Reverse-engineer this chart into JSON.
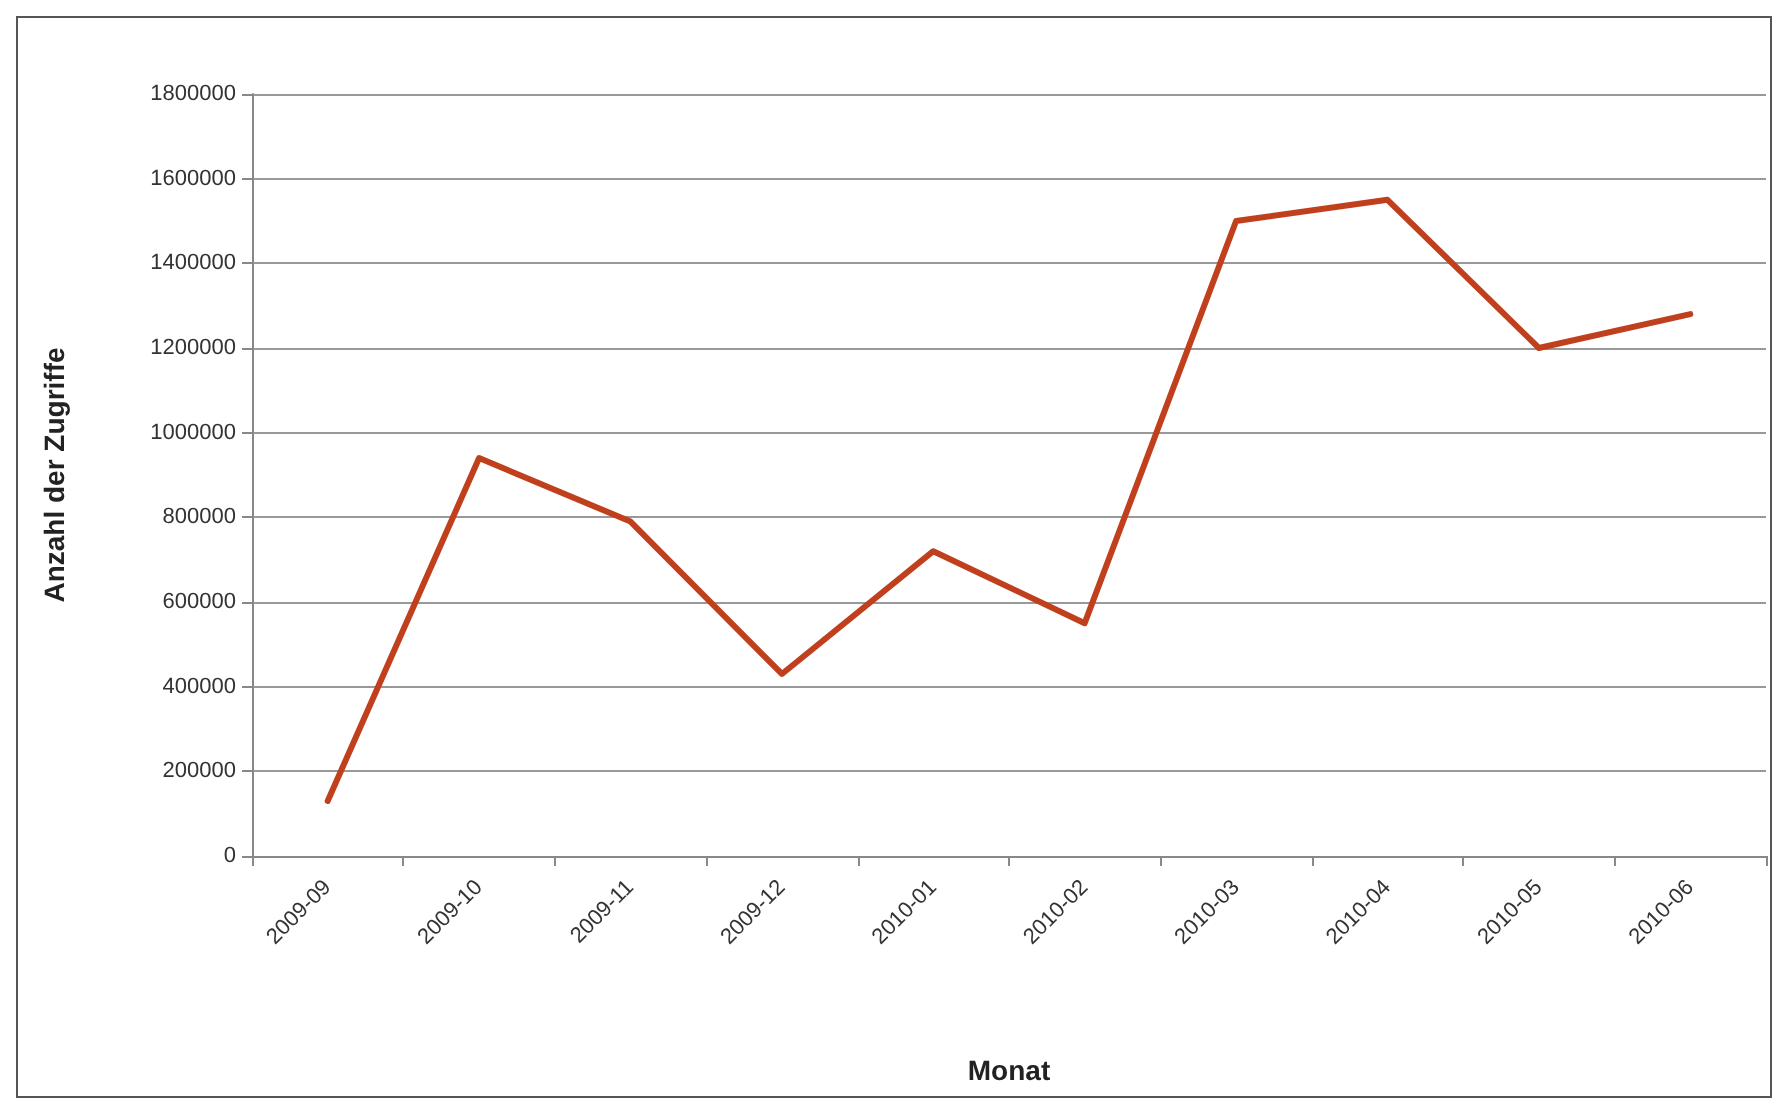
{
  "chart_data": {
    "type": "line",
    "xlabel": "Monat",
    "ylabel": "Anzahl der Zugriffe",
    "categories": [
      "2009-09",
      "2009-10",
      "2009-11",
      "2009-12",
      "2010-01",
      "2010-02",
      "2010-03",
      "2010-04",
      "2010-05",
      "2010-06"
    ],
    "series": [
      {
        "color": "#c0401e",
        "values": [
          130000,
          940000,
          790000,
          430000,
          720000,
          550000,
          1500000,
          1550000,
          1200000,
          1280000
        ]
      }
    ],
    "ylim": [
      0,
      1800000
    ],
    "yticks": [
      0,
      200000,
      400000,
      600000,
      800000,
      1000000,
      1200000,
      1400000,
      1600000,
      1800000
    ],
    "grid": "y",
    "marker": "none",
    "line_style": "solid"
  }
}
